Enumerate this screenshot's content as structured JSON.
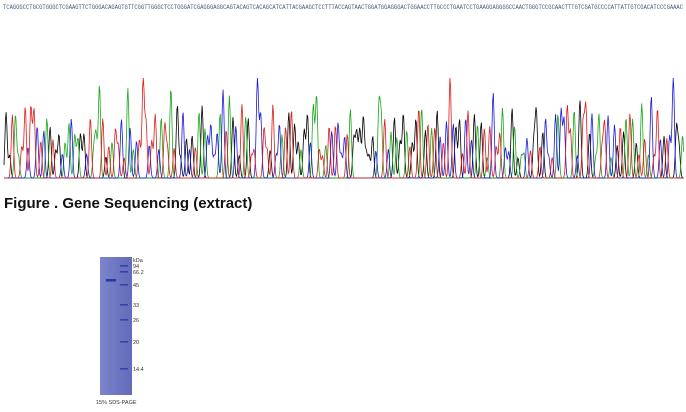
{
  "sequence": "TCAGGGCCTGCGTGGGCTCGAAGTTCTGGGACAGAGTGTTCGGTTGGGCTCCTGGGATCGAGGGAGGCAGTACAGTCACAGCATCATTACGAAGCTCCTTTACCAGTAACTGGATGGAGGGACTGGAACCTTGCCCTGAATCCTGAAGGAGGGGCCAACTGGGTCCGCAACTTTGTCGATGCCCCATTATTGTCGACATCCCGAAAC",
  "figure_caption": "Figure . Gene Sequencing (extract)",
  "gel": {
    "unit_label": "kDa",
    "markers": [
      94,
      66.2,
      45,
      33,
      26,
      20,
      14.4
    ],
    "caption": "15% SDS-PAGE"
  }
}
